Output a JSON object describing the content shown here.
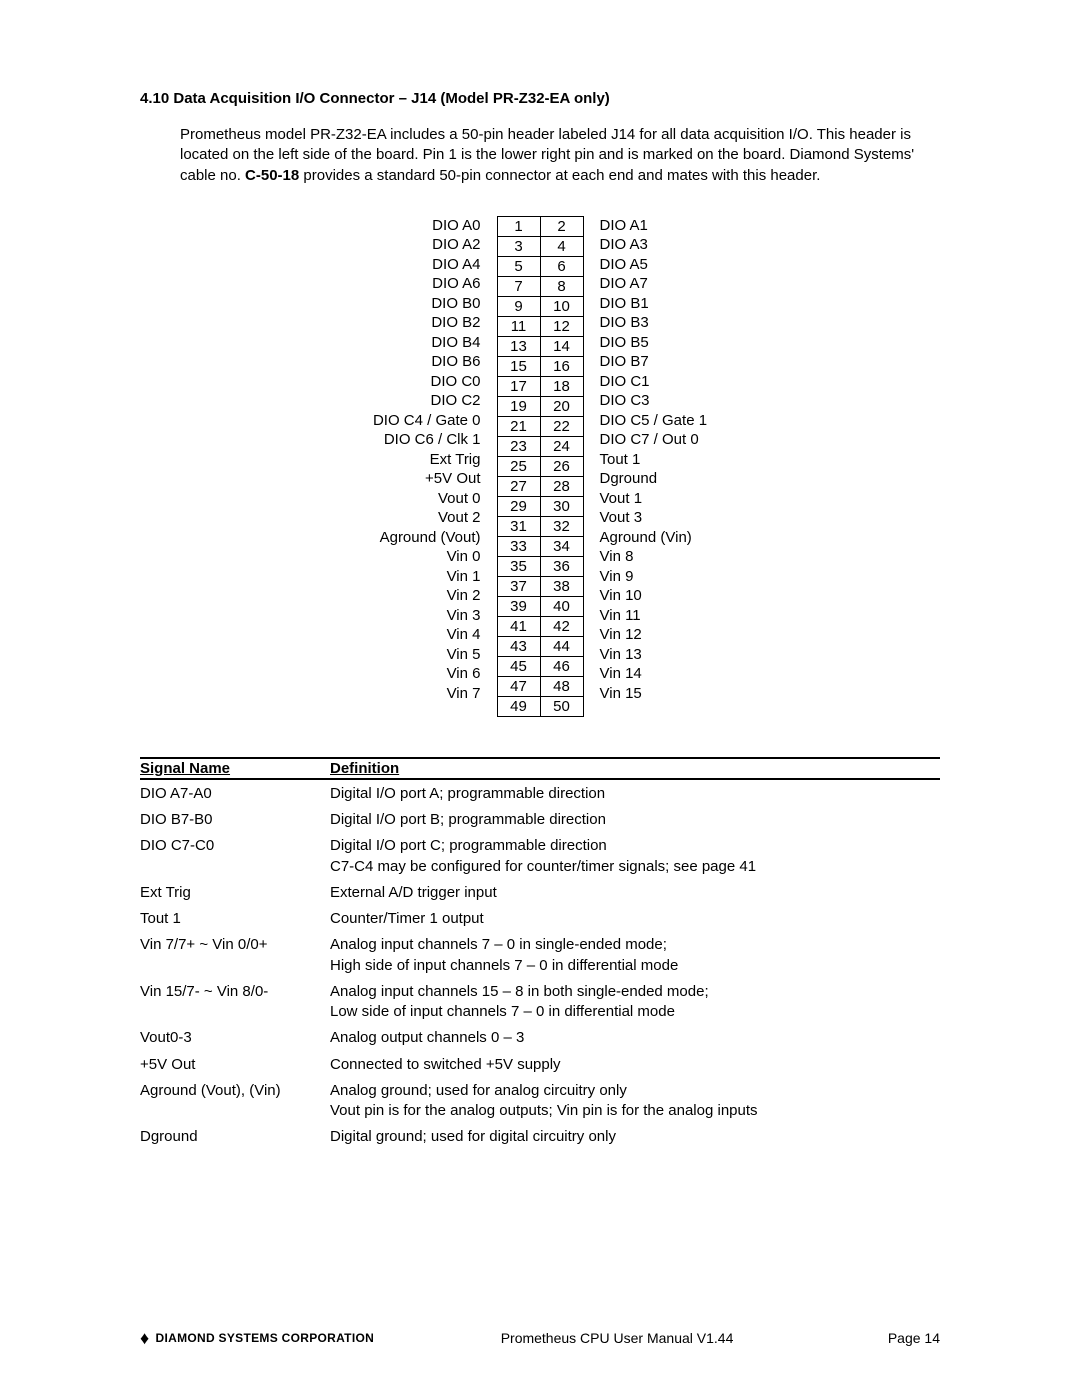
{
  "section_title": "4.10 Data Acquisition I/O Connector – J14 (Model PR-Z32-EA only)",
  "intro_parts": {
    "p1a": "Prometheus model PR-Z32-EA includes a 50-pin header labeled J14 for all data acquisition I/O. This header is located on the left side of the board. Pin 1 is the lower right pin and is marked on the board. Diamond Systems' cable no. ",
    "p1b_bold": "C-50-18",
    "p1c": " provides a standard 50-pin connector at each end and mates with this header."
  },
  "pinout": {
    "rows": [
      {
        "l": "DIO A0",
        "a": "1",
        "b": "2",
        "r": "DIO A1"
      },
      {
        "l": "DIO A2",
        "a": "3",
        "b": "4",
        "r": "DIO A3"
      },
      {
        "l": "DIO A4",
        "a": "5",
        "b": "6",
        "r": "DIO A5"
      },
      {
        "l": "DIO A6",
        "a": "7",
        "b": "8",
        "r": "DIO A7"
      },
      {
        "l": "DIO B0",
        "a": "9",
        "b": "10",
        "r": "DIO B1"
      },
      {
        "l": "DIO B2",
        "a": "11",
        "b": "12",
        "r": "DIO B3"
      },
      {
        "l": "DIO B4",
        "a": "13",
        "b": "14",
        "r": "DIO B5"
      },
      {
        "l": "DIO B6",
        "a": "15",
        "b": "16",
        "r": "DIO B7"
      },
      {
        "l": "DIO C0",
        "a": "17",
        "b": "18",
        "r": "DIO C1"
      },
      {
        "l": "DIO C2",
        "a": "19",
        "b": "20",
        "r": "DIO C3"
      },
      {
        "l": "DIO C4 / Gate 0",
        "a": "21",
        "b": "22",
        "r": "DIO C5 / Gate 1"
      },
      {
        "l": "DIO C6 / Clk 1",
        "a": "23",
        "b": "24",
        "r": "DIO C7 / Out 0"
      },
      {
        "l": "Ext Trig",
        "a": "25",
        "b": "26",
        "r": "Tout 1"
      },
      {
        "l": "+5V Out",
        "a": "27",
        "b": "28",
        "r": "Dground"
      },
      {
        "l": "Vout 0",
        "a": "29",
        "b": "30",
        "r": "Vout 1"
      },
      {
        "l": "Vout 2",
        "a": "31",
        "b": "32",
        "r": "Vout 3"
      },
      {
        "l": "Aground (Vout)",
        "a": "33",
        "b": "34",
        "r": "Aground (Vin)"
      },
      {
        "l": "Vin 0",
        "a": "35",
        "b": "36",
        "r": "Vin 8"
      },
      {
        "l": "Vin 1",
        "a": "37",
        "b": "38",
        "r": "Vin 9"
      },
      {
        "l": "Vin 2",
        "a": "39",
        "b": "40",
        "r": "Vin 10"
      },
      {
        "l": "Vin 3",
        "a": "41",
        "b": "42",
        "r": "Vin 11"
      },
      {
        "l": "Vin 4",
        "a": "43",
        "b": "44",
        "r": "Vin 12"
      },
      {
        "l": "Vin 5",
        "a": "45",
        "b": "46",
        "r": "Vin 13"
      },
      {
        "l": "Vin 6",
        "a": "47",
        "b": "48",
        "r": "Vin 14"
      },
      {
        "l": "Vin 7",
        "a": "49",
        "b": "50",
        "r": "Vin 15"
      }
    ]
  },
  "sig_header": {
    "name": "Signal Name",
    "def": "Definition"
  },
  "signals": [
    {
      "name": "DIO A7-A0",
      "def": "Digital I/O port A; programmable direction"
    },
    {
      "name": "DIO B7-B0",
      "def": "Digital I/O port B; programmable direction"
    },
    {
      "name": "DIO C7-C0",
      "def": "Digital I/O port C; programmable direction\nC7-C4 may be configured for counter/timer signals; see page 41"
    },
    {
      "name": "Ext Trig",
      "def": "External A/D trigger input"
    },
    {
      "name": "Tout 1",
      "def": "Counter/Timer 1 output"
    },
    {
      "name": "Vin 7/7+ ~ Vin 0/0+",
      "def": "Analog input channels 7 – 0 in single-ended mode;\nHigh side of input channels 7 – 0 in differential mode"
    },
    {
      "name": "Vin 15/7- ~ Vin 8/0-",
      "def": "Analog input channels 15 – 8 in both single-ended mode;\nLow side of input channels 7 – 0 in differential mode"
    },
    {
      "name": "Vout0-3",
      "def": "Analog output channels 0 – 3"
    },
    {
      "name": "+5V Out",
      "def": "Connected to switched +5V supply"
    },
    {
      "name": "Aground (Vout), (Vin)",
      "def": "Analog ground; used for analog circuitry only\nVout pin is for the analog outputs; Vin pin is for the analog inputs"
    },
    {
      "name": "Dground",
      "def": "Digital ground; used for digital circuitry only"
    }
  ],
  "footer": {
    "company": "DIAMOND SYSTEMS CORPORATION",
    "center": "Prometheus CPU User Manual V1.44",
    "page": "Page 14"
  }
}
